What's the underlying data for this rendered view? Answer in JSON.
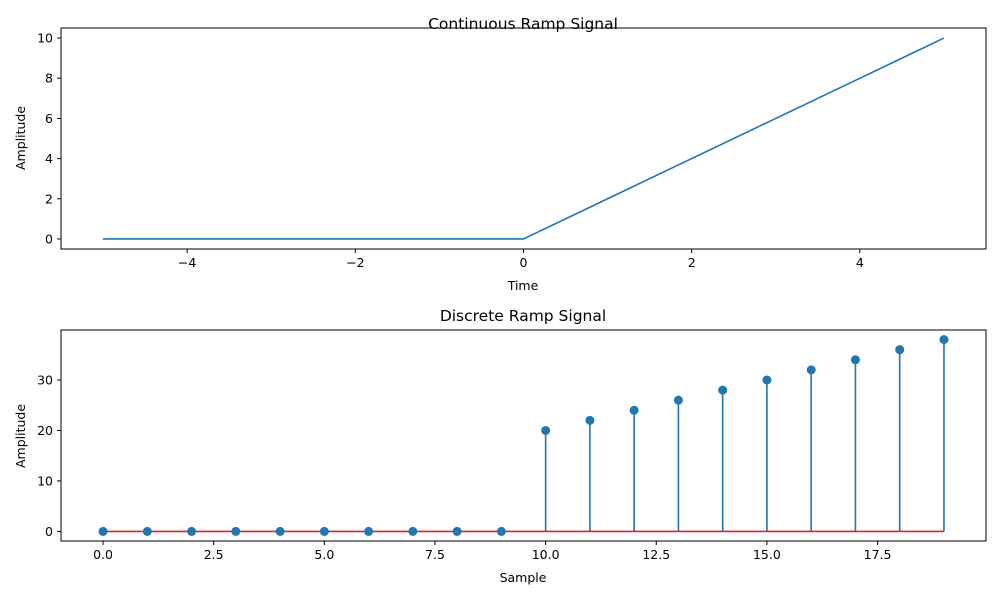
{
  "chart_data": [
    {
      "type": "line",
      "title": "Continuous Ramp Signal",
      "xlabel": "Time",
      "ylabel": "Amplitude",
      "xlim": [
        -5.5,
        5.5
      ],
      "ylim": [
        -0.5,
        10.5
      ],
      "xticks": [
        -4,
        -2,
        0,
        2,
        4
      ],
      "xtick_labels": [
        "−4",
        "−2",
        "0",
        "2",
        "4"
      ],
      "yticks": [
        0,
        2,
        4,
        6,
        8,
        10
      ],
      "ytick_labels": [
        "0",
        "2",
        "4",
        "6",
        "8",
        "10"
      ],
      "grid": false,
      "line_color": "#1f77b4",
      "x": [
        -5,
        0,
        5
      ],
      "y": [
        0,
        0,
        10
      ]
    },
    {
      "type": "stem",
      "title": "Discrete Ramp Signal",
      "xlabel": "Sample",
      "ylabel": "Amplitude",
      "xlim": [
        -0.95,
        19.95
      ],
      "ylim": [
        -1.9,
        39.9
      ],
      "xticks": [
        0,
        2.5,
        5,
        7.5,
        10,
        12.5,
        15,
        17.5
      ],
      "xtick_labels": [
        "0.0",
        "2.5",
        "5.0",
        "7.5",
        "10.0",
        "12.5",
        "15.0",
        "17.5"
      ],
      "yticks": [
        0,
        10,
        20,
        30
      ],
      "ytick_labels": [
        "0",
        "10",
        "20",
        "30"
      ],
      "grid": false,
      "stem_color": "#1f77b4",
      "baseline_color": "#d62728",
      "x": [
        0,
        1,
        2,
        3,
        4,
        5,
        6,
        7,
        8,
        9,
        10,
        11,
        12,
        13,
        14,
        15,
        16,
        17,
        18,
        19
      ],
      "y": [
        0,
        0,
        0,
        0,
        0,
        0,
        0,
        0,
        0,
        0,
        20,
        22,
        24,
        26,
        28,
        30,
        32,
        34,
        36,
        38
      ]
    }
  ]
}
